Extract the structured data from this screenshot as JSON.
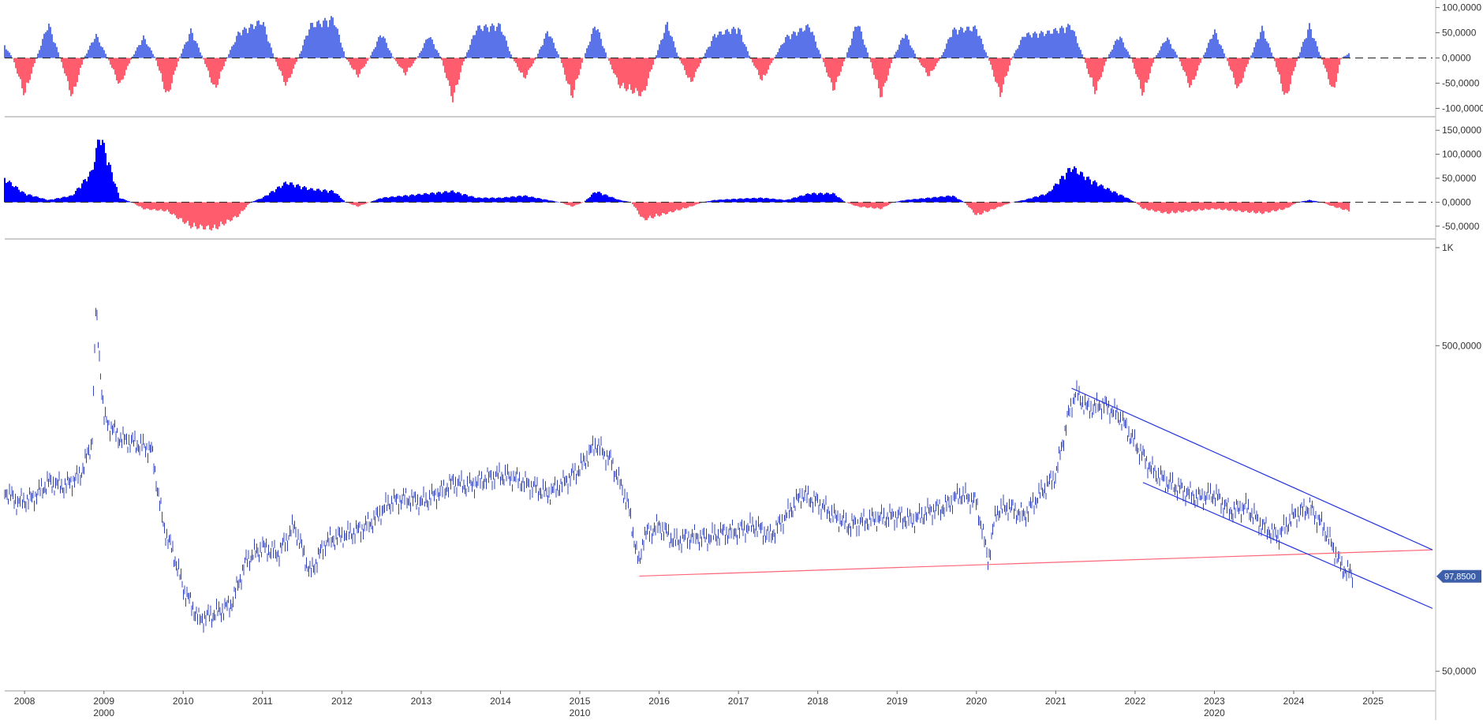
{
  "chart_data": [
    {
      "type": "area",
      "panel": "oscillator-1",
      "ylim": [
        -115000,
        115000
      ],
      "y_tick_labels": [
        "100,0000",
        "50,0000",
        "0,0000",
        "-50,0000",
        "-100,0000"
      ],
      "y_ticks": [
        100000,
        50000,
        0,
        -50000,
        -100000
      ],
      "zero_line": "dashed",
      "colors": {
        "positive": "#5b73e8",
        "negative": "#ff5c6e"
      },
      "x": [
        2007.7,
        2008.0,
        2008.3,
        2008.6,
        2008.9,
        2009.2,
        2009.5,
        2009.8,
        2010.1,
        2010.4,
        2010.7,
        2011.0,
        2011.3,
        2011.6,
        2011.9,
        2012.2,
        2012.5,
        2012.8,
        2013.1,
        2013.4,
        2013.7,
        2014.0,
        2014.3,
        2014.6,
        2014.9,
        2015.2,
        2015.5,
        2015.8,
        2016.1,
        2016.4,
        2016.7,
        2017.0,
        2017.3,
        2017.6,
        2017.9,
        2018.2,
        2018.5,
        2018.8,
        2019.1,
        2019.4,
        2019.7,
        2020.0,
        2020.3,
        2020.6,
        2020.9,
        2021.2,
        2021.5,
        2021.8,
        2022.1,
        2022.4,
        2022.7,
        2023.0,
        2023.3,
        2023.6,
        2023.9,
        2024.2,
        2024.5,
        2024.7
      ],
      "values": [
        40000,
        -80000,
        75000,
        -85000,
        50000,
        -60000,
        45000,
        -85000,
        60000,
        -70000,
        55000,
        80000,
        -60000,
        70000,
        85000,
        -40000,
        55000,
        -35000,
        50000,
        -90000,
        65000,
        70000,
        -45000,
        60000,
        -85000,
        75000,
        -60000,
        -80000,
        75000,
        -55000,
        50000,
        65000,
        -50000,
        45000,
        70000,
        -70000,
        80000,
        -85000,
        55000,
        -40000,
        60000,
        65000,
        -80000,
        50000,
        55000,
        70000,
        -75000,
        50000,
        -80000,
        45000,
        -65000,
        60000,
        -70000,
        65000,
        -90000,
        70000,
        -75000,
        10000
      ]
    },
    {
      "type": "area",
      "panel": "oscillator-2",
      "ylim": [
        -75000,
        175000
      ],
      "y_tick_labels": [
        "150,0000",
        "100,0000",
        "50,0000",
        "0,0000",
        "-50,0000"
      ],
      "y_ticks": [
        150000,
        100000,
        50000,
        0,
        -50000
      ],
      "zero_line": "dashed",
      "colors": {
        "positive": "#0000ff",
        "negative": "#ff5c6e"
      },
      "x": [
        2007.7,
        2008.0,
        2008.3,
        2008.6,
        2008.85,
        2008.95,
        2009.2,
        2009.5,
        2009.8,
        2010.1,
        2010.4,
        2010.7,
        2011.0,
        2011.3,
        2011.6,
        2011.9,
        2012.2,
        2012.5,
        2012.8,
        2013.1,
        2013.4,
        2013.7,
        2014.0,
        2014.3,
        2014.6,
        2014.9,
        2015.2,
        2015.5,
        2015.8,
        2016.1,
        2016.4,
        2016.7,
        2017.0,
        2017.3,
        2017.6,
        2017.9,
        2018.2,
        2018.5,
        2018.8,
        2019.1,
        2019.4,
        2019.7,
        2020.0,
        2020.3,
        2020.6,
        2020.9,
        2021.2,
        2021.4,
        2021.6,
        2021.9,
        2022.1,
        2022.4,
        2022.7,
        2023.0,
        2023.3,
        2023.6,
        2023.9,
        2024.2,
        2024.5,
        2024.7
      ],
      "values": [
        60000,
        20000,
        5000,
        15000,
        70000,
        155000,
        10000,
        -15000,
        -20000,
        -55000,
        -60000,
        -30000,
        10000,
        45000,
        30000,
        25000,
        -10000,
        10000,
        15000,
        20000,
        25000,
        10000,
        10000,
        15000,
        5000,
        -10000,
        25000,
        5000,
        -40000,
        -25000,
        -10000,
        5000,
        8000,
        10000,
        5000,
        20000,
        20000,
        -10000,
        -15000,
        5000,
        10000,
        15000,
        -30000,
        -10000,
        5000,
        20000,
        80000,
        55000,
        35000,
        10000,
        -15000,
        -25000,
        -20000,
        -15000,
        -20000,
        -25000,
        -15000,
        5000,
        -10000,
        -20000
      ]
    },
    {
      "type": "line",
      "panel": "price",
      "scale": "log",
      "ylim": [
        45,
        1000
      ],
      "y_tick_labels": [
        "1K",
        "500,0000",
        "50,0000"
      ],
      "y_ticks": [
        1000,
        500,
        50
      ],
      "x_tick_labels": [
        "2008",
        "2009",
        "2010",
        "2011",
        "2012",
        "2013",
        "2014",
        "2015",
        "2016",
        "2017",
        "2018",
        "2019",
        "2020",
        "2021",
        "2022",
        "2023",
        "2024",
        "2025"
      ],
      "x_ticks": [
        2008,
        2009,
        2010,
        2011,
        2012,
        2013,
        2014,
        2015,
        2016,
        2017,
        2018,
        2019,
        2020,
        2021,
        2022,
        2023,
        2024,
        2025
      ],
      "x_secondary_labels": [
        "2000",
        "2010",
        "2020"
      ],
      "x_secondary_ticks": [
        2009,
        2015,
        2023
      ],
      "xlim": [
        2007.75,
        2025.75
      ],
      "price_color": "#3344bb",
      "x": [
        2007.75,
        2007.9,
        2008.1,
        2008.3,
        2008.5,
        2008.7,
        2008.85,
        2008.9,
        2009.0,
        2009.2,
        2009.4,
        2009.6,
        2009.75,
        2009.9,
        2010.0,
        2010.2,
        2010.4,
        2010.6,
        2010.8,
        2011.0,
        2011.2,
        2011.4,
        2011.6,
        2011.8,
        2012.0,
        2012.2,
        2012.4,
        2012.6,
        2012.8,
        2013.0,
        2013.2,
        2013.4,
        2013.6,
        2013.8,
        2014.0,
        2014.2,
        2014.4,
        2014.6,
        2014.8,
        2015.0,
        2015.2,
        2015.4,
        2015.6,
        2015.75,
        2015.8,
        2016.0,
        2016.2,
        2016.4,
        2016.6,
        2016.8,
        2017.0,
        2017.2,
        2017.4,
        2017.6,
        2017.8,
        2018.0,
        2018.2,
        2018.4,
        2018.6,
        2018.8,
        2019.0,
        2019.2,
        2019.4,
        2019.6,
        2019.8,
        2020.0,
        2020.15,
        2020.25,
        2020.4,
        2020.6,
        2020.8,
        2021.0,
        2021.15,
        2021.25,
        2021.4,
        2021.6,
        2021.8,
        2022.0,
        2022.2,
        2022.4,
        2022.6,
        2022.8,
        2023.0,
        2023.2,
        2023.4,
        2023.6,
        2023.8,
        2024.0,
        2024.2,
        2024.4,
        2024.6,
        2024.75
      ],
      "values": [
        180,
        165,
        170,
        190,
        185,
        200,
        250,
        650,
        300,
        260,
        250,
        240,
        140,
        110,
        90,
        72,
        75,
        80,
        110,
        120,
        115,
        140,
        100,
        125,
        130,
        135,
        145,
        165,
        170,
        165,
        175,
        190,
        185,
        195,
        200,
        195,
        185,
        175,
        190,
        210,
        250,
        220,
        165,
        105,
        130,
        140,
        125,
        130,
        128,
        133,
        135,
        140,
        130,
        150,
        175,
        165,
        150,
        140,
        145,
        148,
        150,
        145,
        155,
        160,
        175,
        165,
        110,
        155,
        160,
        150,
        175,
        200,
        300,
        360,
        320,
        330,
        305,
        250,
        210,
        190,
        180,
        170,
        175,
        155,
        160,
        140,
        130,
        150,
        160,
        135,
        105,
        97.85
      ],
      "last_price_label": "97,8500",
      "last_price": 97.85,
      "trendlines": [
        {
          "name": "support",
          "color": "#ff6677",
          "points": [
            [
              2015.75,
              98
            ],
            [
              2025.75,
              118
            ]
          ]
        },
        {
          "name": "channel-upper",
          "color": "#2233dd",
          "points": [
            [
              2021.2,
              370
            ],
            [
              2025.75,
              118
            ]
          ]
        },
        {
          "name": "channel-lower",
          "color": "#2233dd",
          "points": [
            [
              2022.1,
              190
            ],
            [
              2025.75,
              78
            ]
          ]
        }
      ]
    }
  ]
}
